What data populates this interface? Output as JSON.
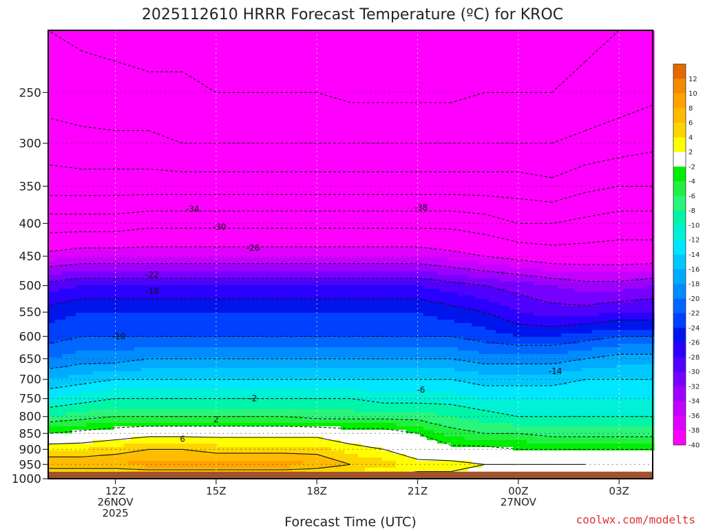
{
  "chart_data": {
    "type": "heatmap",
    "title": "2025112610 HRRR Forecast Temperature (ºC) for KROC",
    "xlabel": "Forecast Time (UTC)",
    "ylabel": "",
    "x": [
      10,
      11,
      12,
      13,
      14,
      15,
      16,
      17,
      18,
      19,
      20,
      21,
      22,
      23,
      24,
      25,
      26,
      27,
      28
    ],
    "x_units": "hours UTC from 00Z 26NOV2025",
    "xlim": [
      10,
      28
    ],
    "y": [
      1000,
      950,
      900,
      850,
      800,
      750,
      700,
      650,
      600,
      550,
      500,
      450,
      400,
      350,
      300,
      250,
      200
    ],
    "y_units": "hPa",
    "ylim": [
      1000,
      200
    ],
    "y_scale": "log",
    "x_ticks": [
      {
        "x": 12,
        "lines": [
          "12Z",
          "26NOV",
          "2025"
        ]
      },
      {
        "x": 15,
        "lines": [
          "15Z"
        ]
      },
      {
        "x": 18,
        "lines": [
          "18Z"
        ]
      },
      {
        "x": 21,
        "lines": [
          "21Z"
        ]
      },
      {
        "x": 24,
        "lines": [
          "00Z",
          "27NOV"
        ]
      },
      {
        "x": 27,
        "lines": [
          "03Z"
        ]
      }
    ],
    "y_ticks": [
      250,
      300,
      350,
      400,
      450,
      500,
      550,
      600,
      650,
      700,
      750,
      800,
      850,
      900,
      950,
      1000
    ],
    "temperature_c": [
      [
        1,
        8,
        4,
        -2,
        -8,
        -12,
        -16,
        -20,
        -23,
        -25,
        -29,
        -37,
        -44,
        -52,
        -56,
        -60,
        -62
      ],
      [
        1,
        8,
        4,
        -1,
        -7,
        -11,
        -15,
        -19,
        -22,
        -24,
        -28,
        -36,
        -44,
        -52,
        -57,
        -60,
        -63
      ],
      [
        1,
        8,
        5,
        0,
        -6,
        -10,
        -14,
        -19,
        -22,
        -24,
        -28,
        -36,
        -44,
        -52,
        -57,
        -61,
        -63
      ],
      [
        1,
        9,
        6,
        1,
        -6,
        -10,
        -14,
        -18,
        -22,
        -24,
        -28,
        -36,
        -43,
        -52,
        -57,
        -61,
        -64
      ],
      [
        1,
        9,
        6,
        1,
        -6,
        -10,
        -14,
        -18,
        -22,
        -24,
        -28,
        -36,
        -43,
        -52,
        -58,
        -61,
        -64
      ],
      [
        1,
        9,
        5,
        1,
        -6,
        -10,
        -14,
        -18,
        -22,
        -24,
        -28,
        -36,
        -43,
        -52,
        -58,
        -62,
        -64
      ],
      [
        1,
        9,
        5,
        1,
        -6,
        -10,
        -14,
        -18,
        -22,
        -24,
        -28,
        -36,
        -43,
        -52,
        -58,
        -62,
        -64
      ],
      [
        1,
        9,
        5,
        1,
        -6,
        -10,
        -14,
        -18,
        -22,
        -24,
        -28,
        -36,
        -43,
        -52,
        -58,
        -62,
        -65
      ],
      [
        1,
        8,
        5,
        1,
        -7,
        -10,
        -14,
        -18,
        -22,
        -24,
        -28,
        -36,
        -43,
        -52,
        -58,
        -62,
        -65
      ],
      [
        1,
        6,
        3,
        0,
        -7,
        -10,
        -14,
        -18,
        -22,
        -24,
        -28,
        -36,
        -43,
        -52,
        -58,
        -63,
        -65
      ],
      [
        1,
        5,
        2,
        0,
        -7,
        -11,
        -14,
        -18,
        -22,
        -24,
        -28,
        -36,
        -43,
        -52,
        -58,
        -63,
        -65
      ],
      [
        1,
        3,
        0,
        -2,
        -7,
        -11,
        -14,
        -18,
        -22,
        -24,
        -28,
        -36,
        -43,
        -52,
        -58,
        -63,
        -65
      ],
      [
        1,
        3,
        -1,
        -5,
        -8,
        -11,
        -14,
        -18,
        -22,
        -25,
        -29,
        -37,
        -43,
        -52,
        -58,
        -63,
        -65
      ],
      [
        1,
        2,
        -1,
        -6,
        -9,
        -12,
        -15,
        -19,
        -23,
        -26,
        -30,
        -38,
        -44,
        -52,
        -58,
        -62,
        -64
      ],
      [
        1,
        2,
        -2,
        -6,
        -10,
        -12,
        -15,
        -19,
        -24,
        -28,
        -31,
        -39,
        -46,
        -52,
        -58,
        -62,
        -64
      ],
      [
        1,
        2,
        -2,
        -7,
        -10,
        -12,
        -15,
        -19,
        -24,
        -29,
        -32,
        -40,
        -46,
        -53,
        -58,
        -62,
        -64
      ],
      [
        1,
        2,
        -2,
        -7,
        -10,
        -12,
        -14,
        -18,
        -23,
        -29,
        -33,
        -40,
        -45,
        -51,
        -57,
        -61,
        -63
      ],
      [
        1,
        1,
        -2,
        -7,
        -10,
        -12,
        -14,
        -17,
        -22,
        -28,
        -33,
        -40,
        -44,
        -50,
        -56,
        -60,
        -62
      ],
      [
        1,
        1,
        -2,
        -7,
        -10,
        -12,
        -14,
        -17,
        -22,
        -28,
        -32,
        -40,
        -44,
        -50,
        -55,
        -59,
        -61
      ]
    ],
    "colorbar": {
      "labels": [
        "12",
        "10",
        "8",
        "6",
        "4",
        "2",
        "-2",
        "-4",
        "-6",
        "-8",
        "-10",
        "-12",
        "-14",
        "-16",
        "-18",
        "-20",
        "-22",
        "-24",
        "-26",
        "-28",
        "-30",
        "-32",
        "-34",
        "-36",
        "-38",
        "-40"
      ],
      "bins": [
        {
          "color": "#e36a00"
        },
        {
          "color": "#f58a00"
        },
        {
          "color": "#ffa200"
        },
        {
          "color": "#ffbb00"
        },
        {
          "color": "#ffd500"
        },
        {
          "color": "#ffff00"
        },
        {
          "color": "#ffffff"
        },
        {
          "color": "#00ee00"
        },
        {
          "color": "#22f040"
        },
        {
          "color": "#2af57a"
        },
        {
          "color": "#00f5a8"
        },
        {
          "color": "#00f0d8"
        },
        {
          "color": "#00e6ff"
        },
        {
          "color": "#00c8ff"
        },
        {
          "color": "#00aaff"
        },
        {
          "color": "#008cff"
        },
        {
          "color": "#0066ff"
        },
        {
          "color": "#0040ff"
        },
        {
          "color": "#0014ee"
        },
        {
          "color": "#2a00ff"
        },
        {
          "color": "#5000ff"
        },
        {
          "color": "#7800ff"
        },
        {
          "color": "#9e00ff"
        },
        {
          "color": "#c400ff"
        },
        {
          "color": "#e000ff"
        },
        {
          "color": "#ff00ff"
        }
      ]
    },
    "contour_labels": [
      {
        "text": "-34",
        "x": 14.3,
        "p": 380
      },
      {
        "text": "-30",
        "x": 15.1,
        "p": 405
      },
      {
        "text": "-26",
        "x": 16.1,
        "p": 437
      },
      {
        "text": "-22",
        "x": 13.1,
        "p": 481
      },
      {
        "text": "-18",
        "x": 13.1,
        "p": 510
      },
      {
        "text": "-10",
        "x": 12.1,
        "p": 600
      },
      {
        "text": "-38",
        "x": 21.1,
        "p": 378
      },
      {
        "text": "-14",
        "x": 25.1,
        "p": 680
      },
      {
        "text": "-6",
        "x": 21.1,
        "p": 727
      },
      {
        "text": "-2",
        "x": 16.1,
        "p": 750
      },
      {
        "text": "2",
        "x": 15.0,
        "p": 808
      },
      {
        "text": "6",
        "x": 14.0,
        "p": 867
      }
    ],
    "grid": true,
    "legend": "colorbar, right"
  },
  "credit": "coolwx.com/modelts",
  "colors": {
    "ground": "#a0522d",
    "freezing_line": "#e0006a",
    "contour": "#111111"
  }
}
